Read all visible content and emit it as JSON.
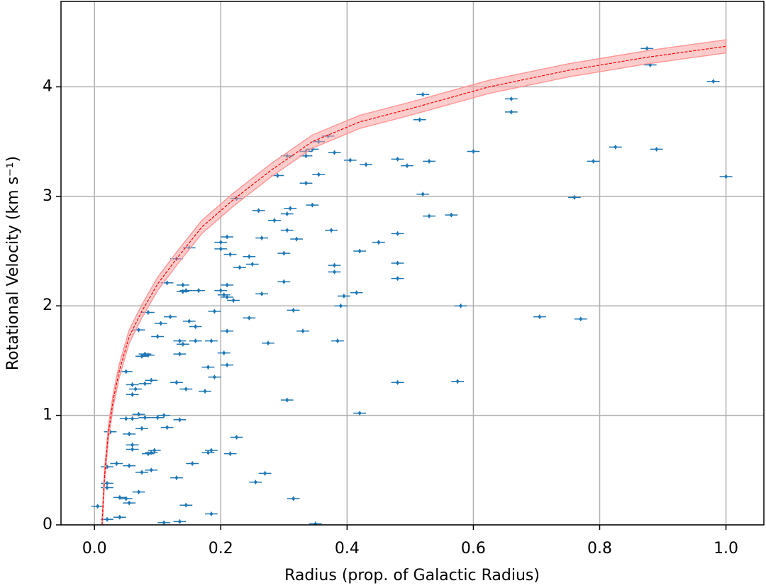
{
  "chart_data": {
    "type": "scatter",
    "xlabel": "Radius (prop. of Galactic Radius)",
    "ylabel": "Rotational Velocity (km s⁻¹)",
    "xlim": [
      -0.053,
      1.06
    ],
    "ylim": [
      0,
      4.78
    ],
    "xticks": [
      {
        "value": 0,
        "label": "0.0"
      },
      0.2,
      0.4,
      0.6,
      0.8,
      {
        "value": 1,
        "label": "1.0"
      }
    ],
    "yticks": [
      0,
      1,
      2,
      3,
      4
    ],
    "grid": true,
    "series": [
      {
        "type": "scatter",
        "color": "#1f77b4",
        "xerr": 0.01,
        "yerr": 0.02,
        "x": [
          0.005,
          0.02,
          0.02,
          0.02,
          0.02,
          0.025,
          0.035,
          0.04,
          0.04,
          0.05,
          0.05,
          0.05,
          0.055,
          0.055,
          0.055,
          0.06,
          0.06,
          0.06,
          0.06,
          0.06,
          0.065,
          0.07,
          0.07,
          0.07,
          0.075,
          0.075,
          0.075,
          0.08,
          0.08,
          0.08,
          0.085,
          0.085,
          0.085,
          0.09,
          0.09,
          0.09,
          0.095,
          0.1,
          0.1,
          0.105,
          0.11,
          0.11,
          0.115,
          0.115,
          0.12,
          0.13,
          0.13,
          0.13,
          0.135,
          0.135,
          0.135,
          0.135,
          0.14,
          0.14,
          0.14,
          0.145,
          0.145,
          0.145,
          0.15,
          0.15,
          0.155,
          0.16,
          0.16,
          0.165,
          0.175,
          0.18,
          0.18,
          0.185,
          0.185,
          0.185,
          0.19,
          0.19,
          0.2,
          0.2,
          0.2,
          0.205,
          0.205,
          0.21,
          0.21,
          0.21,
          0.21,
          0.21,
          0.215,
          0.215,
          0.22,
          0.225,
          0.225,
          0.23,
          0.245,
          0.245,
          0.25,
          0.255,
          0.26,
          0.265,
          0.265,
          0.27,
          0.275,
          0.285,
          0.29,
          0.3,
          0.3,
          0.305,
          0.305,
          0.305,
          0.305,
          0.31,
          0.315,
          0.315,
          0.32,
          0.33,
          0.335,
          0.335,
          0.335,
          0.345,
          0.345,
          0.35,
          0.355,
          0.355,
          0.37,
          0.375,
          0.38,
          0.38,
          0.38,
          0.385,
          0.39,
          0.395,
          0.405,
          0.415,
          0.42,
          0.42,
          0.43,
          0.45,
          0.48,
          0.48,
          0.48,
          0.48,
          0.48,
          0.495,
          0.515,
          0.52,
          0.52,
          0.53,
          0.53,
          0.565,
          0.575,
          0.58,
          0.6,
          0.66,
          0.66,
          0.705,
          0.76,
          0.77,
          0.79,
          0.825,
          0.875,
          0.88,
          0.89,
          0.98,
          1.0
        ],
        "y": [
          0.17,
          0.05,
          0.38,
          0.34,
          0.53,
          0.85,
          0.56,
          0.07,
          0.25,
          0.24,
          0.97,
          1.4,
          0.2,
          0.54,
          0.83,
          0.97,
          1.19,
          1.28,
          0.73,
          0.69,
          1.24,
          1.78,
          1.01,
          0.3,
          0.48,
          0.88,
          1.54,
          1.56,
          1.29,
          0.98,
          1.94,
          0.65,
          1.55,
          0.66,
          1.32,
          0.5,
          0.68,
          1.72,
          0.98,
          1.84,
          1.0,
          0.02,
          2.21,
          0.89,
          1.9,
          2.43,
          1.3,
          0.43,
          1.68,
          1.56,
          0.96,
          0.03,
          2.19,
          1.65,
          2.13,
          1.24,
          2.14,
          0.18,
          1.86,
          2.53,
          0.56,
          1.81,
          1.68,
          2.14,
          1.22,
          0.66,
          1.44,
          0.68,
          0.1,
          1.68,
          1.95,
          1.35,
          2.14,
          2.58,
          2.52,
          2.1,
          1.57,
          1.77,
          2.19,
          2.08,
          1.46,
          2.63,
          2.47,
          0.65,
          2.05,
          2.98,
          0.8,
          2.35,
          2.45,
          1.89,
          2.38,
          0.39,
          2.87,
          2.62,
          2.11,
          0.47,
          1.66,
          2.78,
          3.19,
          2.22,
          2.48,
          3.37,
          2.69,
          2.84,
          1.14,
          2.89,
          1.96,
          0.24,
          2.61,
          1.77,
          3.12,
          3.37,
          3.41,
          2.92,
          3.43,
          0.01,
          3.2,
          3.5,
          3.55,
          2.69,
          2.37,
          2.31,
          3.4,
          1.68,
          2.0,
          2.09,
          3.33,
          2.12,
          1.02,
          2.5,
          3.29,
          2.58,
          3.34,
          2.66,
          2.39,
          2.25,
          1.3,
          3.28,
          3.7,
          3.93,
          3.02,
          2.82,
          3.32,
          2.83,
          1.31,
          2.0,
          3.41,
          3.89,
          3.77,
          1.9,
          2.99,
          1.88,
          3.32,
          3.45,
          4.35,
          4.2,
          3.43,
          4.05,
          3.18
        ]
      },
      {
        "type": "line",
        "color": "#ff0000",
        "dashed": true,
        "band": 0.06,
        "band_color": "#ff9999",
        "x": [
          0.012,
          0.016,
          0.022,
          0.03,
          0.039,
          0.055,
          0.075,
          0.1,
          0.13,
          0.17,
          0.22,
          0.28,
          0.345,
          0.42,
          0.5,
          0.625,
          0.75,
          0.875,
          1.0
        ],
        "y": [
          0,
          0.45,
          0.84,
          1.15,
          1.4,
          1.72,
          1.95,
          2.2,
          2.43,
          2.72,
          2.97,
          3.24,
          3.5,
          3.68,
          3.8,
          4.0,
          4.15,
          4.27,
          4.37
        ]
      }
    ]
  }
}
